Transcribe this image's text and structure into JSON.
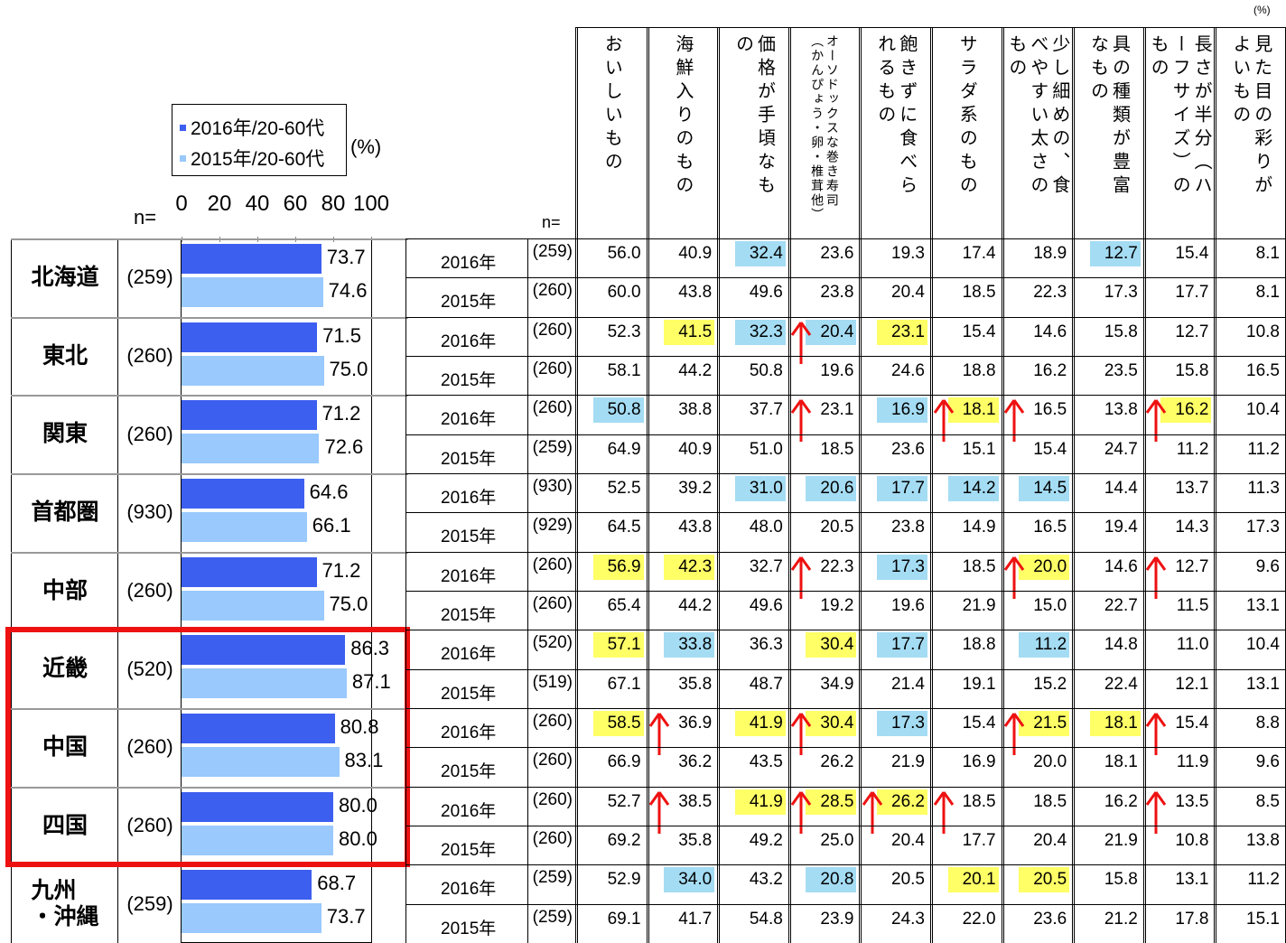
{
  "chart_data": {
    "type": "bar",
    "orientation": "horizontal",
    "n_label": "n=",
    "unit": "(%)",
    "categories": [
      "北海道",
      "東北",
      "関東",
      "首都圏",
      "中部",
      "近畿",
      "中国",
      "四国",
      "九州\n・沖縄"
    ],
    "n": [
      "(259)",
      "(260)",
      "(260)",
      "(930)",
      "(260)",
      "(520)",
      "(260)",
      "(260)",
      "(259)"
    ],
    "series": [
      {
        "name": "2016年/20-60代",
        "color": "#3d5ff0",
        "values": [
          73.7,
          71.5,
          71.2,
          64.6,
          71.2,
          86.3,
          80.8,
          80.0,
          68.7
        ],
        "value_labels": [
          "73.7",
          "71.5",
          "71.2",
          "64.6",
          "71.2",
          "86.3",
          "80.8",
          "80.0",
          "68.7"
        ]
      },
      {
        "name": "2015年/20-60代",
        "color": "#99c9fd",
        "values": [
          74.6,
          75.0,
          72.6,
          66.1,
          75.0,
          87.1,
          83.1,
          80.0,
          73.7
        ],
        "value_labels": [
          "74.6",
          "75.0",
          "72.6",
          "66.1",
          "75.0",
          "87.1",
          "83.1",
          "80.0",
          "73.7"
        ]
      }
    ],
    "xlim": [
      0,
      100
    ],
    "xticks": [
      0,
      20,
      40,
      60,
      80,
      100
    ],
    "highlight_box": {
      "from": 5,
      "to": 7,
      "color": "#ee1111"
    }
  },
  "table": {
    "unit": "(%)",
    "n_label": "n=",
    "highlight_colors": {
      "yellow": "#ffff66",
      "blue": "#a4dcf3"
    },
    "arrow_color": "#ee1111",
    "columns": [
      "おいしいもの",
      "海鮮入りのもの",
      "価格が手頃なもの",
      "オーソドックスな巻き寿司（かんぴょう・卵・椎茸他）",
      "飽きずに食べられるもの",
      "サラダ系のもの",
      "少し細めの、食べやすい太さのもの",
      "具の種類が豊富なもの",
      "長さが半分（ハーフサイズ）のもの",
      "見た目の彩りがよいもの"
    ],
    "groups": [
      {
        "rows": [
          {
            "year": "2016年",
            "n": "(259)",
            "values": [
              "56.0",
              "40.9",
              "32.4",
              "23.6",
              "19.3",
              "17.4",
              "18.9",
              "12.7",
              "15.4",
              "8.1"
            ],
            "highlight": [
              null,
              null,
              "blue",
              null,
              null,
              null,
              null,
              "blue",
              null,
              null
            ]
          },
          {
            "year": "2015年",
            "n": "(260)",
            "values": [
              "60.0",
              "43.8",
              "49.6",
              "23.8",
              "20.4",
              "18.5",
              "22.3",
              "17.3",
              "17.7",
              "8.1"
            ]
          }
        ]
      },
      {
        "rows": [
          {
            "year": "2016年",
            "n": "(260)",
            "values": [
              "52.3",
              "41.5",
              "32.3",
              "20.4",
              "23.1",
              "15.4",
              "14.6",
              "15.8",
              "12.7",
              "10.8"
            ],
            "highlight": [
              null,
              "yellow",
              "blue",
              "blue",
              "yellow",
              null,
              null,
              null,
              null,
              null
            ],
            "arrows": [
              false,
              false,
              false,
              true,
              false,
              false,
              false,
              false,
              false,
              false
            ]
          },
          {
            "year": "2015年",
            "n": "(260)",
            "values": [
              "58.1",
              "44.2",
              "50.8",
              "19.6",
              "24.6",
              "18.8",
              "16.2",
              "23.5",
              "15.8",
              "16.5"
            ]
          }
        ]
      },
      {
        "rows": [
          {
            "year": "2016年",
            "n": "(260)",
            "values": [
              "50.8",
              "38.8",
              "37.7",
              "23.1",
              "16.9",
              "18.1",
              "16.5",
              "13.8",
              "16.2",
              "10.4"
            ],
            "highlight": [
              "blue",
              null,
              null,
              null,
              "blue",
              "yellow",
              null,
              null,
              "yellow",
              null
            ],
            "arrows": [
              false,
              false,
              false,
              true,
              false,
              true,
              true,
              false,
              true,
              false
            ]
          },
          {
            "year": "2015年",
            "n": "(259)",
            "values": [
              "64.9",
              "40.9",
              "51.0",
              "18.5",
              "23.6",
              "15.1",
              "15.4",
              "24.7",
              "11.2",
              "11.2"
            ]
          }
        ]
      },
      {
        "rows": [
          {
            "year": "2016年",
            "n": "(930)",
            "values": [
              "52.5",
              "39.2",
              "31.0",
              "20.6",
              "17.7",
              "14.2",
              "14.5",
              "14.4",
              "13.7",
              "11.3"
            ],
            "highlight": [
              null,
              null,
              "blue",
              "blue",
              "blue",
              "blue",
              "blue",
              null,
              null,
              null
            ]
          },
          {
            "year": "2015年",
            "n": "(929)",
            "values": [
              "64.5",
              "43.8",
              "48.0",
              "20.5",
              "23.8",
              "14.9",
              "16.5",
              "19.4",
              "14.3",
              "17.3"
            ]
          }
        ]
      },
      {
        "rows": [
          {
            "year": "2016年",
            "n": "(260)",
            "values": [
              "56.9",
              "42.3",
              "32.7",
              "22.3",
              "17.3",
              "18.5",
              "20.0",
              "14.6",
              "12.7",
              "9.6"
            ],
            "highlight": [
              "yellow",
              "yellow",
              null,
              null,
              "blue",
              null,
              "yellow",
              null,
              null,
              null
            ],
            "arrows": [
              false,
              false,
              false,
              true,
              false,
              false,
              true,
              false,
              true,
              false
            ]
          },
          {
            "year": "2015年",
            "n": "(260)",
            "values": [
              "65.4",
              "44.2",
              "49.6",
              "19.2",
              "19.6",
              "21.9",
              "15.0",
              "22.7",
              "11.5",
              "13.1"
            ]
          }
        ]
      },
      {
        "rows": [
          {
            "year": "2016年",
            "n": "(520)",
            "values": [
              "57.1",
              "33.8",
              "36.3",
              "30.4",
              "17.7",
              "18.8",
              "11.2",
              "14.8",
              "11.0",
              "10.4"
            ],
            "highlight": [
              "yellow",
              "blue",
              null,
              "yellow",
              "blue",
              null,
              "blue",
              null,
              null,
              null
            ]
          },
          {
            "year": "2015年",
            "n": "(519)",
            "values": [
              "67.1",
              "35.8",
              "48.7",
              "34.9",
              "21.4",
              "19.1",
              "15.2",
              "22.4",
              "12.1",
              "13.1"
            ]
          }
        ]
      },
      {
        "rows": [
          {
            "year": "2016年",
            "n": "(260)",
            "values": [
              "58.5",
              "36.9",
              "41.9",
              "30.4",
              "17.3",
              "15.4",
              "21.5",
              "18.1",
              "15.4",
              "8.8"
            ],
            "highlight": [
              "yellow",
              null,
              "yellow",
              "yellow",
              "blue",
              null,
              "yellow",
              "yellow",
              null,
              null
            ],
            "arrows": [
              false,
              true,
              false,
              true,
              false,
              false,
              true,
              false,
              true,
              false
            ]
          },
          {
            "year": "2015年",
            "n": "(260)",
            "values": [
              "66.9",
              "36.2",
              "43.5",
              "26.2",
              "21.9",
              "16.9",
              "20.0",
              "18.1",
              "11.9",
              "9.6"
            ]
          }
        ]
      },
      {
        "rows": [
          {
            "year": "2016年",
            "n": "(260)",
            "values": [
              "52.7",
              "38.5",
              "41.9",
              "28.5",
              "26.2",
              "18.5",
              "18.5",
              "16.2",
              "13.5",
              "8.5"
            ],
            "highlight": [
              null,
              null,
              "yellow",
              "yellow",
              "yellow",
              null,
              null,
              null,
              null,
              null
            ],
            "arrows": [
              false,
              true,
              false,
              true,
              true,
              true,
              false,
              false,
              true,
              false
            ]
          },
          {
            "year": "2015年",
            "n": "(260)",
            "values": [
              "69.2",
              "35.8",
              "49.2",
              "25.0",
              "20.4",
              "17.7",
              "20.4",
              "21.9",
              "10.8",
              "13.8"
            ]
          }
        ]
      },
      {
        "rows": [
          {
            "year": "2016年",
            "n": "(259)",
            "values": [
              "52.9",
              "34.0",
              "43.2",
              "20.8",
              "20.5",
              "20.1",
              "20.5",
              "15.8",
              "13.1",
              "11.2"
            ],
            "highlight": [
              null,
              "blue",
              null,
              "blue",
              null,
              "yellow",
              "yellow",
              null,
              null,
              null
            ]
          },
          {
            "year": "2015年",
            "n": "(259)",
            "values": [
              "69.1",
              "41.7",
              "54.8",
              "23.9",
              "24.3",
              "22.0",
              "23.6",
              "21.2",
              "17.8",
              "15.1"
            ]
          }
        ]
      }
    ]
  }
}
